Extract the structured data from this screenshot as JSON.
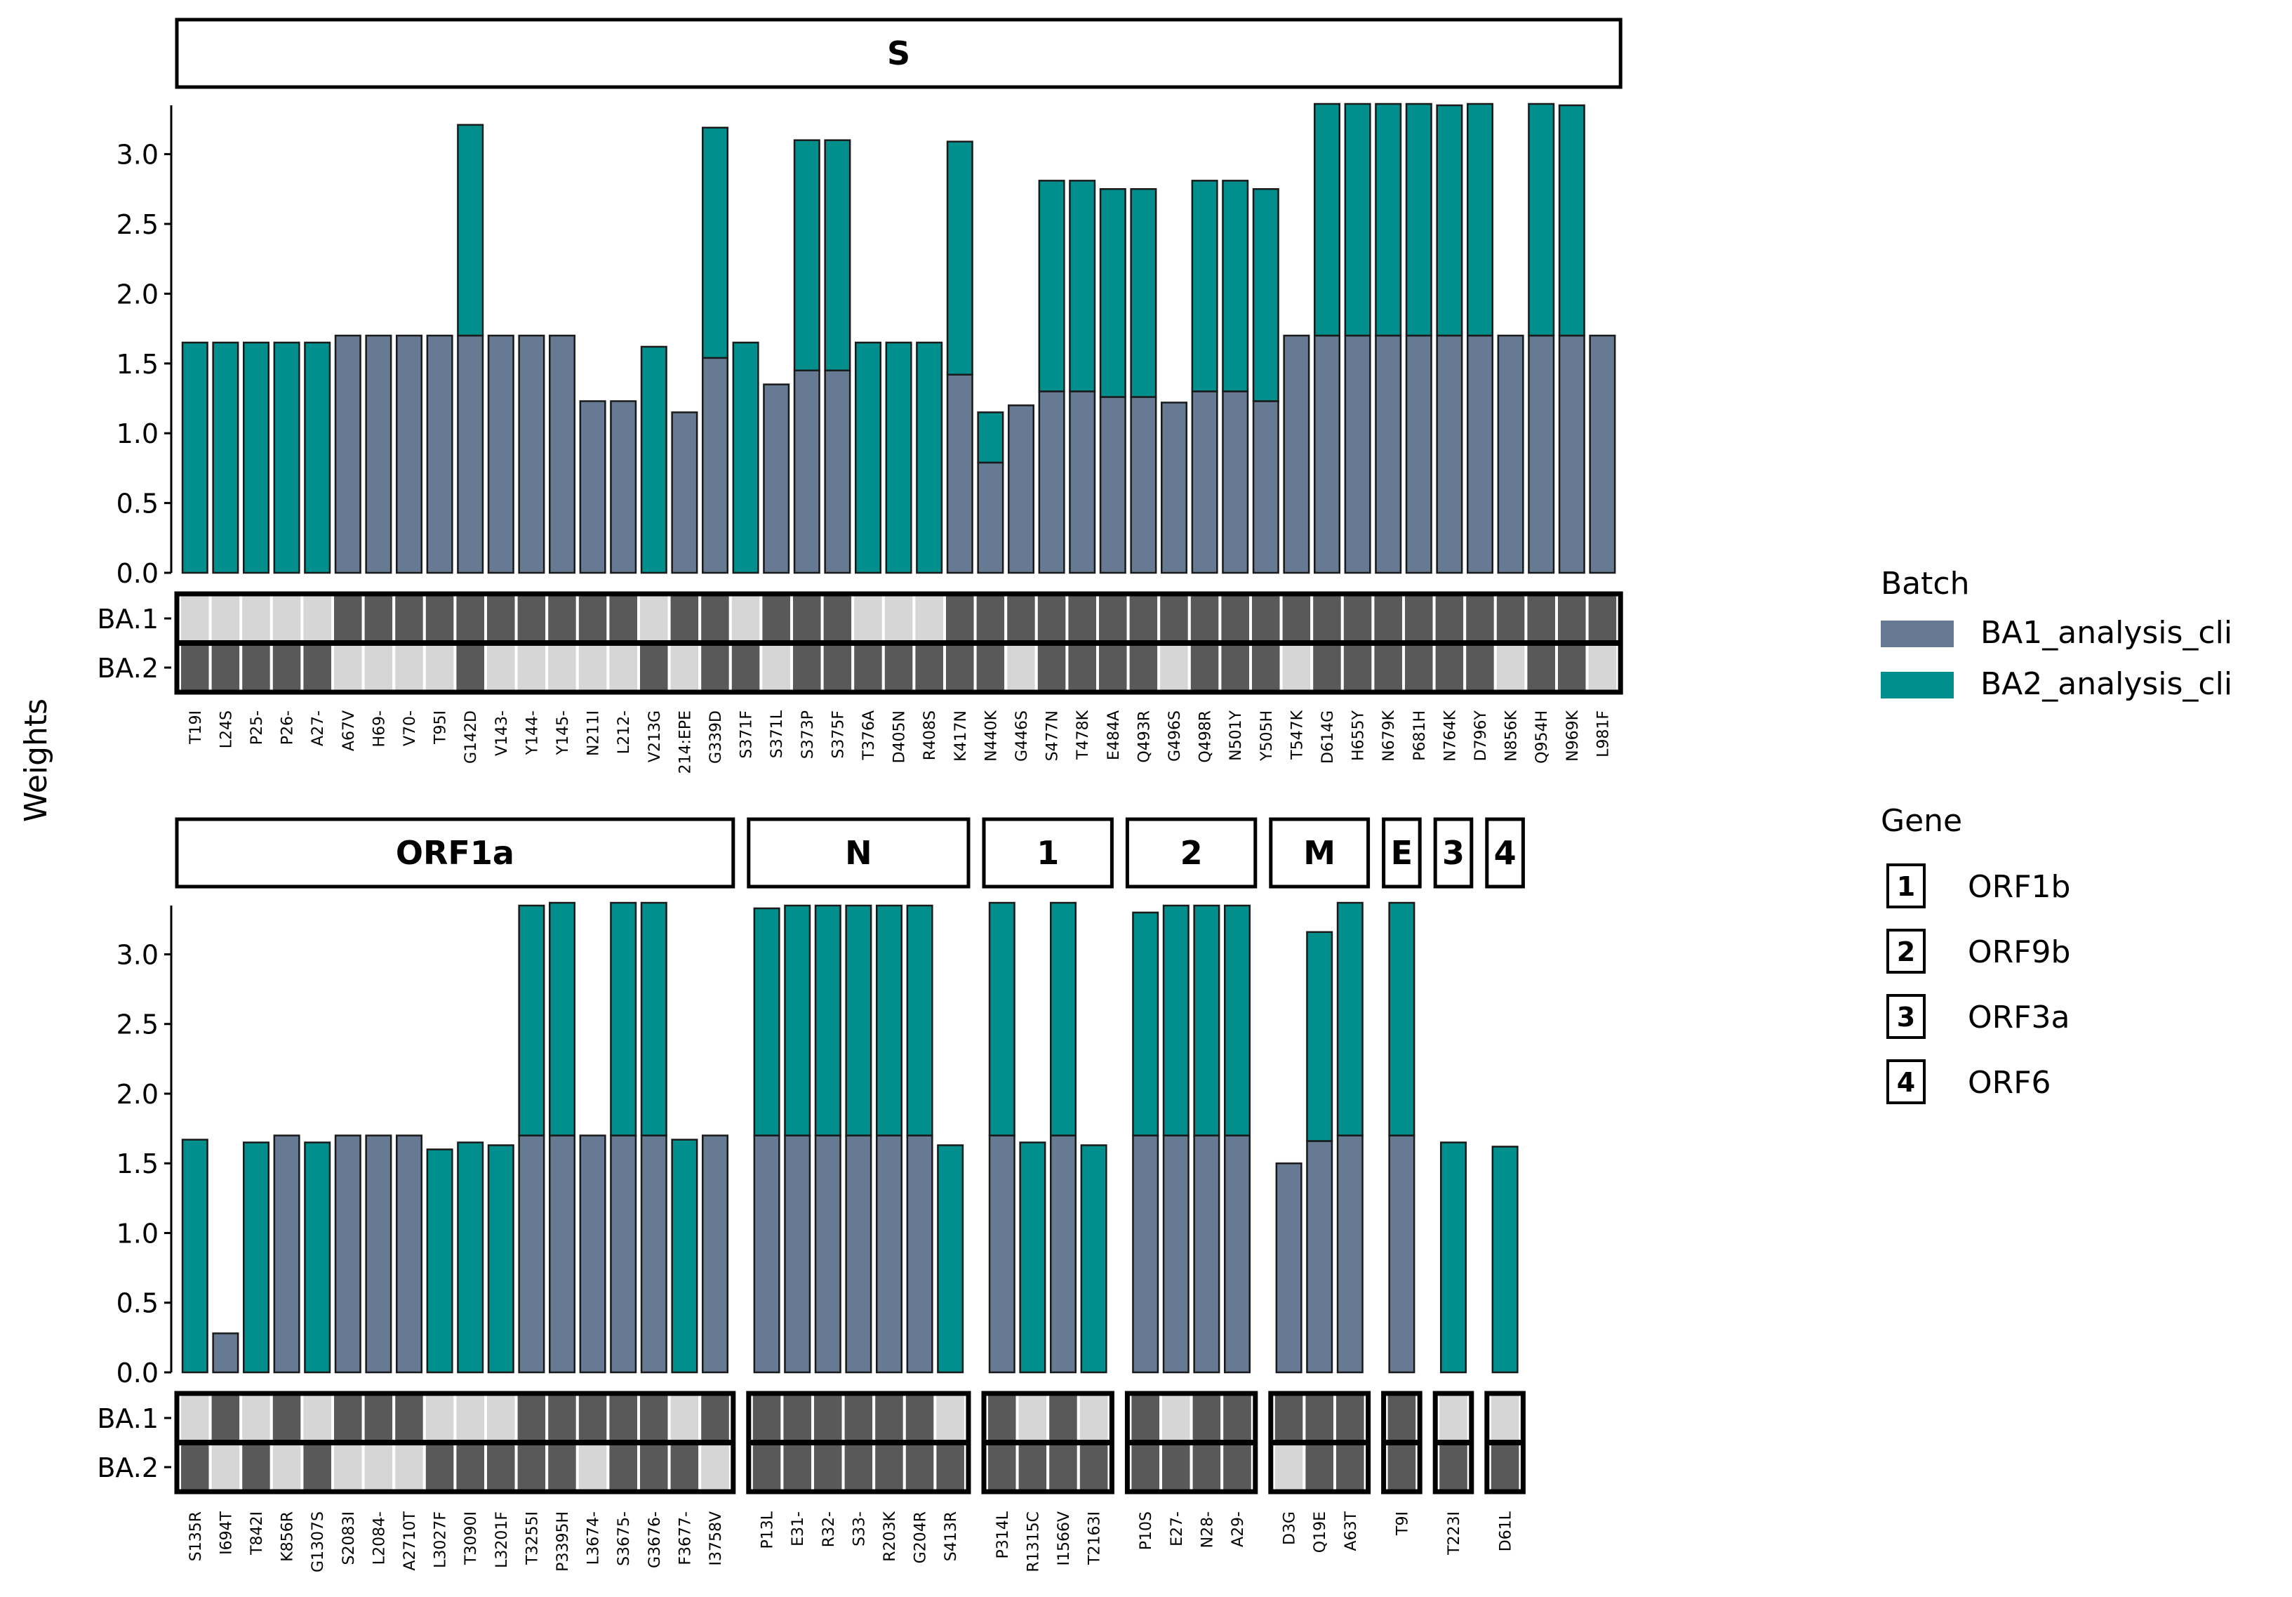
{
  "chart_data": {
    "type": "bar",
    "ylabel": "Weights",
    "ylim": [
      0,
      3.35
    ],
    "yticks": [
      0.0,
      0.5,
      1.0,
      1.5,
      2.0,
      2.5,
      3.0
    ],
    "ytick_labels": [
      "0.0",
      "0.5",
      "1.0",
      "1.5",
      "2.0",
      "2.5",
      "3.0"
    ],
    "batch_names": [
      "BA.1",
      "BA.2"
    ],
    "legend": {
      "batch_title": "Batch",
      "batch_entries": [
        {
          "label": "BA1_analysis_cli",
          "color": "#667a94"
        },
        {
          "label": "BA2_analysis_cli",
          "color": "#008f8c"
        }
      ],
      "gene_title": "Gene",
      "gene_entries": [
        {
          "key": "1",
          "label": "ORF1b"
        },
        {
          "key": "2",
          "label": "ORF9b"
        },
        {
          "key": "3",
          "label": "ORF3a"
        },
        {
          "key": "4",
          "label": "ORF6"
        }
      ]
    },
    "colors": {
      "ba1": "#667a94",
      "ba2": "#008f8c",
      "present": "#595959",
      "absent": "#d6d6d6"
    },
    "rows": [
      {
        "genes": [
          {
            "label": "S",
            "mutations": [
              "T19I",
              "L24S",
              "P25-",
              "P26-",
              "A27-",
              "A67V",
              "H69-",
              "V70-",
              "T95I",
              "G142D",
              "V143-",
              "Y144-",
              "Y145-",
              "N211I",
              "L212-",
              "V213G",
              "214:EPE",
              "G339D",
              "S371F",
              "S371L",
              "S373P",
              "S375F",
              "T376A",
              "D405N",
              "R408S",
              "K417N",
              "N440K",
              "G446S",
              "S477N",
              "T478K",
              "E484A",
              "Q493R",
              "G496S",
              "Q498R",
              "N501Y",
              "Y505H",
              "T547K",
              "D614G",
              "H655Y",
              "N679K",
              "P681H",
              "N764K",
              "D796Y",
              "N856K",
              "Q954H",
              "N969K",
              "L981F"
            ],
            "ba1_weight": [
              0,
              0,
              0,
              0,
              0,
              1.7,
              1.7,
              1.7,
              1.7,
              1.7,
              1.7,
              1.7,
              1.7,
              1.23,
              1.23,
              0,
              1.15,
              1.54,
              0,
              1.35,
              1.45,
              1.45,
              0,
              0,
              0,
              1.42,
              0.79,
              1.2,
              1.3,
              1.3,
              1.26,
              1.26,
              1.22,
              1.3,
              1.3,
              1.23,
              1.7,
              1.7,
              1.7,
              1.7,
              1.7,
              1.7,
              1.7,
              1.7,
              1.7,
              1.7,
              1.7
            ],
            "ba2_weight": [
              1.65,
              1.65,
              1.65,
              1.65,
              1.65,
              0,
              0,
              0,
              0,
              1.51,
              0,
              0,
              0,
              0,
              0,
              1.62,
              0,
              1.65,
              1.65,
              0,
              1.65,
              1.65,
              1.65,
              1.65,
              1.65,
              1.67,
              0.36,
              0,
              1.51,
              1.51,
              1.49,
              1.49,
              0,
              1.51,
              1.51,
              1.52,
              0,
              1.66,
              1.66,
              1.66,
              1.66,
              1.65,
              1.66,
              0,
              1.66,
              1.65,
              0
            ],
            "ba1_present": [
              0,
              0,
              0,
              0,
              0,
              1,
              1,
              1,
              1,
              1,
              1,
              1,
              1,
              1,
              1,
              0,
              1,
              1,
              0,
              1,
              1,
              1,
              0,
              0,
              0,
              1,
              1,
              1,
              1,
              1,
              1,
              1,
              1,
              1,
              1,
              1,
              1,
              1,
              1,
              1,
              1,
              1,
              1,
              1,
              1,
              1,
              1
            ],
            "ba2_present": [
              1,
              1,
              1,
              1,
              1,
              0,
              0,
              0,
              0,
              1,
              0,
              0,
              0,
              0,
              0,
              1,
              0,
              1,
              1,
              0,
              1,
              1,
              1,
              1,
              1,
              1,
              1,
              0,
              1,
              1,
              1,
              1,
              0,
              1,
              1,
              1,
              0,
              1,
              1,
              1,
              1,
              1,
              1,
              0,
              1,
              1,
              0
            ]
          }
        ]
      },
      {
        "genes": [
          {
            "label": "ORF1a",
            "mutations": [
              "S135R",
              "I694T",
              "T842I",
              "K856R",
              "G1307S",
              "S2083I",
              "L2084-",
              "A2710T",
              "L3027F",
              "T3090I",
              "L3201F",
              "T3255I",
              "P3395H",
              "L3674-",
              "S3675-",
              "G3676-",
              "F3677-",
              "I3758V"
            ],
            "ba1_weight": [
              0,
              0.28,
              0,
              1.7,
              0,
              1.7,
              1.7,
              1.7,
              0,
              0,
              0,
              1.7,
              1.7,
              1.7,
              1.7,
              1.7,
              0,
              1.7
            ],
            "ba2_weight": [
              1.67,
              0,
              1.65,
              0,
              1.65,
              0,
              0,
              0,
              1.6,
              1.65,
              1.63,
              1.65,
              1.67,
              0,
              1.67,
              1.67,
              1.67,
              0
            ],
            "ba1_present": [
              0,
              1,
              0,
              1,
              0,
              1,
              1,
              1,
              0,
              0,
              0,
              1,
              1,
              1,
              1,
              1,
              0,
              1
            ],
            "ba2_present": [
              1,
              0,
              1,
              0,
              1,
              0,
              0,
              0,
              1,
              1,
              1,
              1,
              1,
              0,
              1,
              1,
              1,
              0
            ]
          },
          {
            "label": "N",
            "mutations": [
              "P13L",
              "E31-",
              "R32-",
              "S33-",
              "R203K",
              "G204R",
              "S413R"
            ],
            "ba1_weight": [
              1.7,
              1.7,
              1.7,
              1.7,
              1.7,
              1.7,
              0
            ],
            "ba2_weight": [
              1.63,
              1.65,
              1.65,
              1.65,
              1.65,
              1.65,
              1.63
            ],
            "ba1_present": [
              1,
              1,
              1,
              1,
              1,
              1,
              0
            ],
            "ba2_present": [
              1,
              1,
              1,
              1,
              1,
              1,
              1
            ]
          },
          {
            "label": "1",
            "mutations": [
              "P314L",
              "R1315C",
              "I1566V",
              "T2163I"
            ],
            "ba1_weight": [
              1.7,
              0,
              1.7,
              0
            ],
            "ba2_weight": [
              1.67,
              1.65,
              1.67,
              1.63
            ],
            "ba1_present": [
              1,
              0,
              1,
              0
            ],
            "ba2_present": [
              1,
              1,
              1,
              1
            ]
          },
          {
            "label": "2",
            "mutations": [
              "P10S",
              "E27-",
              "N28-",
              "A29-"
            ],
            "ba1_weight": [
              1.7,
              1.7,
              1.7,
              1.7
            ],
            "ba2_weight": [
              1.6,
              1.65,
              1.65,
              1.65
            ],
            "ba1_present": [
              1,
              0,
              1,
              1
            ],
            "ba2_present": [
              1,
              1,
              1,
              1
            ]
          },
          {
            "label": "M",
            "mutations": [
              "D3G",
              "Q19E",
              "A63T"
            ],
            "ba1_weight": [
              1.5,
              1.66,
              1.7
            ],
            "ba2_weight": [
              0,
              1.5,
              1.67
            ],
            "ba1_present": [
              1,
              1,
              1
            ],
            "ba2_present": [
              0,
              1,
              1
            ]
          },
          {
            "label": "E",
            "mutations": [
              "T9I"
            ],
            "ba1_weight": [
              1.7
            ],
            "ba2_weight": [
              1.67
            ],
            "ba1_present": [
              1
            ],
            "ba2_present": [
              1
            ]
          },
          {
            "label": "3",
            "mutations": [
              "T223I"
            ],
            "ba1_weight": [
              0
            ],
            "ba2_weight": [
              1.65
            ],
            "ba1_present": [
              0
            ],
            "ba2_present": [
              1
            ]
          },
          {
            "label": "4",
            "mutations": [
              "D61L"
            ],
            "ba1_weight": [
              0
            ],
            "ba2_weight": [
              1.62
            ],
            "ba1_present": [
              0
            ],
            "ba2_present": [
              1
            ]
          }
        ]
      }
    ]
  }
}
